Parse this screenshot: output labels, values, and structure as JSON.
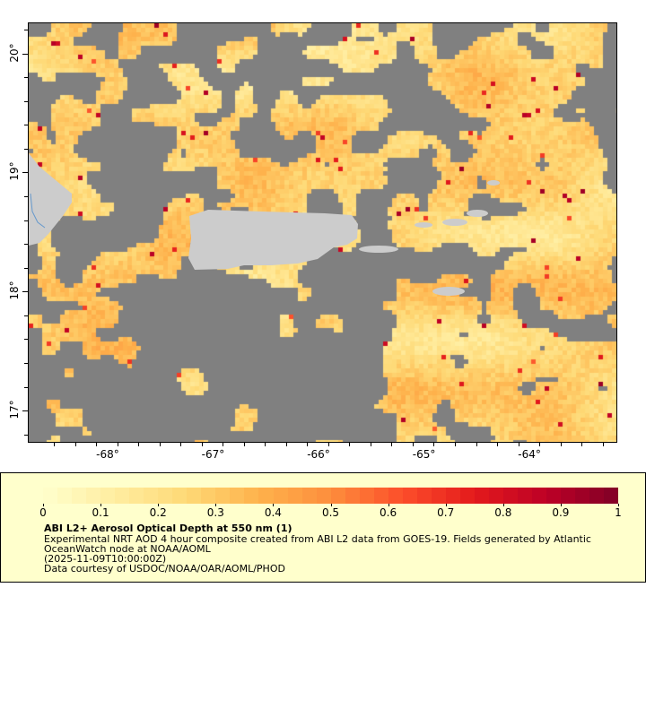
{
  "map": {
    "lon_range": [
      -68.75,
      -63.16
    ],
    "lat_range": [
      16.73,
      20.26
    ],
    "lon_ticks": [
      "-68°",
      "-67°",
      "-66°",
      "-65°",
      "-64°"
    ],
    "lat_ticks": [
      "20°",
      "19°",
      "18°",
      "17°"
    ],
    "colors": {
      "no_data": "#808080",
      "land": "#cccccc",
      "river": "#6699cc"
    }
  },
  "legend": {
    "colorbar_ticks": [
      "0",
      "0.1",
      "0.2",
      "0.3",
      "0.4",
      "0.5",
      "0.6",
      "0.7",
      "0.8",
      "0.9",
      "1"
    ],
    "colormap": "YlOrRd",
    "range": [
      0,
      1
    ],
    "title": "ABI L2+ Aerosol Optical Depth at 550 nm (1)",
    "line1": "Experimental NRT AOD 4 hour composite created from ABI L2 data from GOES-19. Fields generated by Atlantic",
    "line2": "OceanWatch node at NOAA/AOML",
    "line3": "(2025-11-09T10:00:00Z)",
    "line4": "Data courtesy of USDOC/NOAA/OAR/AOML/PHOD"
  }
}
